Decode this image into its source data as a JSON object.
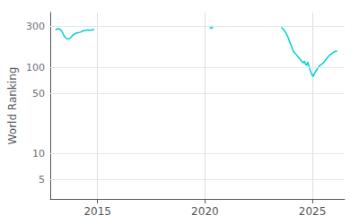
{
  "chart_data": {
    "type": "line",
    "ylabel": "World Ranking",
    "log": "y",
    "grid": true,
    "xlim": [
      2012.8,
      2026.5
    ],
    "xticks": [
      2015,
      2020,
      2025
    ],
    "ylim": [
      3,
      430
    ],
    "yticks": [
      5,
      10,
      50,
      100,
      300
    ],
    "series": [
      {
        "color": "#00d0d0",
        "x": [
          2013.05,
          2013.1,
          2013.15,
          2013.2,
          2013.27,
          2013.32,
          2013.38,
          2013.45,
          2013.55,
          2013.65,
          2013.75,
          2013.85,
          2013.95,
          2014.05,
          2014.2,
          2014.35,
          2014.55,
          2014.7,
          2014.85
        ],
        "values": [
          270,
          275,
          280,
          278,
          273,
          265,
          250,
          230,
          215,
          212,
          220,
          235,
          245,
          250,
          255,
          265,
          270,
          268,
          275
        ]
      },
      {
        "color": "#00d0d0",
        "x": [
          2023.55,
          2023.65,
          2023.75,
          2023.82,
          2023.88,
          2023.93,
          2023.98,
          2024.03,
          2024.08,
          2024.13,
          2024.2,
          2024.27,
          2024.35,
          2024.42,
          2024.5,
          2024.57,
          2024.63,
          2024.68,
          2024.73,
          2024.78,
          2024.83,
          2024.88,
          2024.93,
          2024.98,
          2025.03,
          2025.08,
          2025.15,
          2025.22,
          2025.35,
          2025.5,
          2025.65,
          2025.82,
          2026.0,
          2026.15
        ],
        "values": [
          290,
          275,
          255,
          235,
          218,
          200,
          188,
          175,
          162,
          150,
          145,
          138,
          130,
          125,
          118,
          112,
          118,
          108,
          105,
          115,
          105,
          95,
          88,
          82,
          78,
          83,
          90,
          95,
          105,
          112,
          125,
          140,
          150,
          155
        ]
      },
      {
        "type": "scatter",
        "marker": "point",
        "color": "#00d0d0",
        "x": [
          2020.3
        ],
        "values": [
          290
        ]
      }
    ]
  }
}
